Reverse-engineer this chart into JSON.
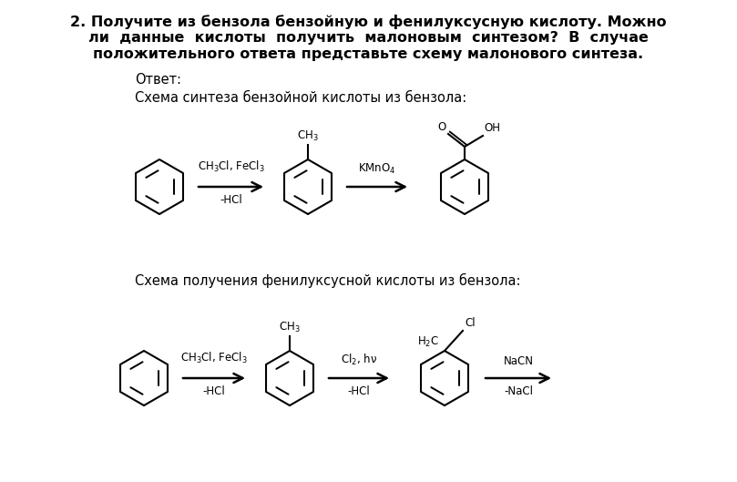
{
  "title_line1": "2. Получите из бензола бензойную и фенилуксусную кислоту. Можно",
  "title_line2": "ли  данные  кислоты  получить  малоновым  синтезом?  В  случае",
  "title_line3": "положительного ответа представьте схему малонового синтеза.",
  "answer_label": "Ответ:",
  "scheme1_label": "Схема синтеза бензойной кислоты из бензола:",
  "scheme2_label": "Схема получения фенилуксусной кислоты из бензола:",
  "bg_color": "#ffffff",
  "text_color": "#000000",
  "line_color": "#000000",
  "font_size_title": 11.5,
  "font_size_label": 10.5,
  "font_size_chem": 8.5
}
